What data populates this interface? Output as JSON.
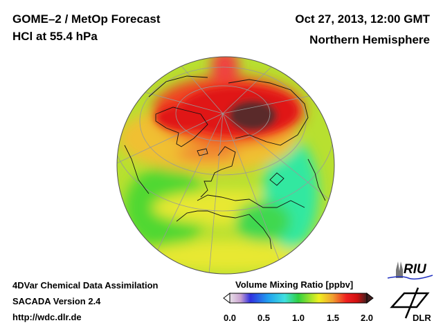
{
  "header": {
    "title_line1": "GOME–2 / MetOp Forecast",
    "title_line2": "HCl at 55.4 hPa",
    "date": "Oct 27, 2013, 12:00 GMT",
    "region": "Northern Hemisphere"
  },
  "footer": {
    "line1": "4DVar Chemical Data Assimilation",
    "line2": "SACADA Version 2.4",
    "url": "http://wdc.dlr.de"
  },
  "colorbar": {
    "title": "Volume Mixing Ratio [ppbv]",
    "ticks": [
      "0.0",
      "0.5",
      "1.0",
      "1.5",
      "2.0"
    ],
    "range": [
      0.0,
      2.0
    ],
    "colors": [
      "#e8e0e8",
      "#c8a0d0",
      "#3030e0",
      "#20a0f0",
      "#40e0e0",
      "#30d040",
      "#f0f020",
      "#f0a030",
      "#f02020",
      "#d01010",
      "#402020"
    ]
  },
  "logos": {
    "riu": "RIU",
    "dlr": "DLR"
  }
}
